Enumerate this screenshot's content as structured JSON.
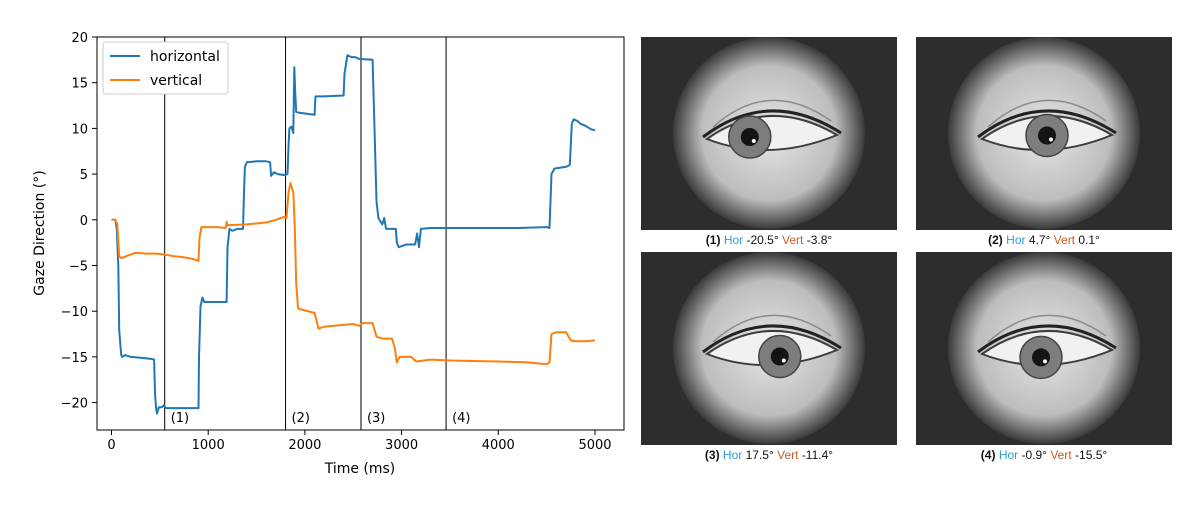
{
  "chart_data": {
    "type": "line",
    "xlabel": "Time (ms)",
    "ylabel": "Gaze Direction (°)",
    "xlim": [
      -150,
      5300
    ],
    "ylim": [
      -23,
      20
    ],
    "xticks": [
      0,
      1000,
      2000,
      3000,
      4000,
      5000
    ],
    "yticks": [
      -20,
      -15,
      -10,
      -5,
      0,
      5,
      10,
      15,
      20
    ],
    "legend_position": "top-left",
    "grid": false,
    "series": [
      {
        "name": "horizontal",
        "color": "#1f77b4",
        "points": [
          [
            0,
            0
          ],
          [
            40,
            0
          ],
          [
            55,
            -1
          ],
          [
            70,
            -5
          ],
          [
            80,
            -12
          ],
          [
            90,
            -13.5
          ],
          [
            100,
            -14.8
          ],
          [
            110,
            -15
          ],
          [
            140,
            -14.8
          ],
          [
            200,
            -15
          ],
          [
            300,
            -15.1
          ],
          [
            400,
            -15.2
          ],
          [
            440,
            -15.3
          ],
          [
            450,
            -19
          ],
          [
            460,
            -20.5
          ],
          [
            470,
            -21.2
          ],
          [
            490,
            -20.5
          ],
          [
            520,
            -20.5
          ],
          [
            540,
            -20.3
          ],
          [
            560,
            -20.6
          ],
          [
            700,
            -20.6
          ],
          [
            900,
            -20.6
          ],
          [
            905,
            -15
          ],
          [
            920,
            -9.5
          ],
          [
            940,
            -8.5
          ],
          [
            960,
            -9
          ],
          [
            1100,
            -9
          ],
          [
            1190,
            -9
          ],
          [
            1200,
            -3
          ],
          [
            1220,
            -1
          ],
          [
            1250,
            -1.2
          ],
          [
            1300,
            -1
          ],
          [
            1360,
            -1
          ],
          [
            1370,
            3
          ],
          [
            1380,
            5.8
          ],
          [
            1400,
            6.3
          ],
          [
            1500,
            6.4
          ],
          [
            1600,
            6.4
          ],
          [
            1640,
            6.3
          ],
          [
            1650,
            4.8
          ],
          [
            1680,
            5.2
          ],
          [
            1720,
            5
          ],
          [
            1780,
            4.9
          ],
          [
            1820,
            5
          ],
          [
            1830,
            8
          ],
          [
            1840,
            10
          ],
          [
            1860,
            10.2
          ],
          [
            1880,
            9.5
          ],
          [
            1890,
            16.7
          ],
          [
            1900,
            14
          ],
          [
            1910,
            11.8
          ],
          [
            1950,
            11.7
          ],
          [
            2100,
            11.5
          ],
          [
            2110,
            13.5
          ],
          [
            2200,
            13.5
          ],
          [
            2400,
            13.6
          ],
          [
            2410,
            16
          ],
          [
            2440,
            18
          ],
          [
            2480,
            17.8
          ],
          [
            2520,
            17.8
          ],
          [
            2560,
            17.6
          ],
          [
            2700,
            17.5
          ],
          [
            2720,
            10
          ],
          [
            2740,
            2
          ],
          [
            2760,
            0.2
          ],
          [
            2800,
            -0.5
          ],
          [
            2820,
            0.2
          ],
          [
            2840,
            -1
          ],
          [
            2900,
            -1
          ],
          [
            2940,
            -1
          ],
          [
            2950,
            -2.5
          ],
          [
            2970,
            -3
          ],
          [
            3050,
            -2.7
          ],
          [
            3100,
            -2.7
          ],
          [
            3140,
            -2.7
          ],
          [
            3160,
            -1.5
          ],
          [
            3180,
            -3
          ],
          [
            3200,
            -1
          ],
          [
            3300,
            -0.9
          ],
          [
            4000,
            -0.9
          ],
          [
            4200,
            -0.9
          ],
          [
            4500,
            -0.8
          ],
          [
            4530,
            -0.9
          ],
          [
            4550,
            5
          ],
          [
            4580,
            5.6
          ],
          [
            4700,
            5.8
          ],
          [
            4740,
            6
          ],
          [
            4760,
            10.5
          ],
          [
            4780,
            11
          ],
          [
            4820,
            10.8
          ],
          [
            4850,
            10.5
          ],
          [
            4900,
            10.3
          ],
          [
            4960,
            9.9
          ],
          [
            5000,
            9.8
          ]
        ]
      },
      {
        "name": "vertical",
        "color": "#ff7f0e",
        "points": [
          [
            0,
            0
          ],
          [
            40,
            0
          ],
          [
            60,
            -0.5
          ],
          [
            80,
            -4
          ],
          [
            100,
            -4.2
          ],
          [
            150,
            -4
          ],
          [
            250,
            -3.6
          ],
          [
            350,
            -3.7
          ],
          [
            450,
            -3.7
          ],
          [
            550,
            -3.8
          ],
          [
            650,
            -4
          ],
          [
            750,
            -4.1
          ],
          [
            850,
            -4.3
          ],
          [
            900,
            -4.5
          ],
          [
            910,
            -2
          ],
          [
            930,
            -0.8
          ],
          [
            1000,
            -0.8
          ],
          [
            1100,
            -0.8
          ],
          [
            1180,
            -0.9
          ],
          [
            1190,
            -0.2
          ],
          [
            1200,
            -0.6
          ],
          [
            1400,
            -0.5
          ],
          [
            1600,
            -0.3
          ],
          [
            1700,
            0
          ],
          [
            1780,
            0.3
          ],
          [
            1810,
            0.2
          ],
          [
            1830,
            3
          ],
          [
            1850,
            4
          ],
          [
            1880,
            3
          ],
          [
            1895,
            -0.5
          ],
          [
            1910,
            -7
          ],
          [
            1930,
            -9.7
          ],
          [
            1960,
            -9.8
          ],
          [
            2100,
            -10.2
          ],
          [
            2120,
            -11
          ],
          [
            2140,
            -11.9
          ],
          [
            2200,
            -11.7
          ],
          [
            2300,
            -11.6
          ],
          [
            2400,
            -11.5
          ],
          [
            2500,
            -11.4
          ],
          [
            2560,
            -11.6
          ],
          [
            2600,
            -11.3
          ],
          [
            2700,
            -11.3
          ],
          [
            2740,
            -12.8
          ],
          [
            2800,
            -13
          ],
          [
            2850,
            -13
          ],
          [
            2900,
            -13
          ],
          [
            2930,
            -14
          ],
          [
            2950,
            -15.6
          ],
          [
            2980,
            -15
          ],
          [
            3100,
            -15
          ],
          [
            3150,
            -15.5
          ],
          [
            3300,
            -15.3
          ],
          [
            3500,
            -15.4
          ],
          [
            4000,
            -15.5
          ],
          [
            4300,
            -15.6
          ],
          [
            4500,
            -15.8
          ],
          [
            4530,
            -15.6
          ],
          [
            4550,
            -12.5
          ],
          [
            4600,
            -12.3
          ],
          [
            4700,
            -12.3
          ],
          [
            4750,
            -13.2
          ],
          [
            4800,
            -13.3
          ],
          [
            4900,
            -13.3
          ],
          [
            5000,
            -13.2
          ]
        ]
      }
    ],
    "markers": [
      {
        "x": 550,
        "label": "(1)"
      },
      {
        "x": 1800,
        "label": "(2)"
      },
      {
        "x": 2580,
        "label": "(3)"
      },
      {
        "x": 3460,
        "label": "(4)"
      }
    ]
  },
  "eye_images": [
    {
      "num": "(1)",
      "hor_label": "Hor",
      "hor_value": "-20.5°",
      "vert_label": "Vert",
      "vert_value": "-3.8°",
      "pupil_dx": -0.32,
      "pupil_dy": 0.0
    },
    {
      "num": "(2)",
      "hor_label": "Hor",
      "hor_value": "4.7°",
      "vert_label": "Vert",
      "vert_value": "0.1°",
      "pupil_dx": 0.05,
      "pupil_dy": -0.05
    },
    {
      "num": "(3)",
      "hor_label": "Hor",
      "hor_value": "17.5°",
      "vert_label": "Vert",
      "vert_value": "-11.4°",
      "pupil_dx": 0.18,
      "pupil_dy": 0.15
    },
    {
      "num": "(4)",
      "hor_label": "Hor",
      "hor_value": "-0.9°",
      "vert_label": "Vert",
      "vert_value": "-15.5°",
      "pupil_dx": -0.05,
      "pupil_dy": 0.18
    }
  ]
}
